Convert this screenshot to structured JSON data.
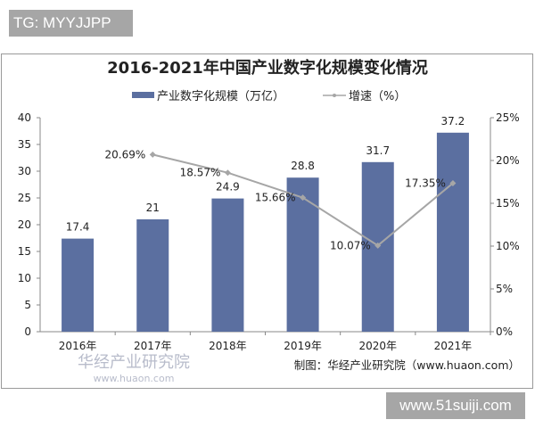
{
  "watermark_top": "TG: MYYJJPP",
  "watermark_bottom": "www.51suiji.com",
  "logo_watermark": "华经产业研究院",
  "logo_watermark_url": "www.huaon.com",
  "source": "制图：华经产业研究院（www.huaon.com）",
  "chart_data": {
    "type": "bar+line",
    "title": "2016-2021年中国产业数字化规模变化情况",
    "categories": [
      "2016年",
      "2017年",
      "2018年",
      "2019年",
      "2020年",
      "2021年"
    ],
    "series": [
      {
        "name": "产业数字化规模（万亿）",
        "type": "bar",
        "axis": "left",
        "color": "#5b6fa0",
        "values": [
          17.4,
          21,
          24.9,
          28.8,
          31.7,
          37.2
        ],
        "labels": [
          "17.4",
          "21",
          "24.9",
          "28.8",
          "31.7",
          "37.2"
        ]
      },
      {
        "name": "增速（%）",
        "type": "line",
        "axis": "right",
        "color": "#a6a6a6",
        "values": [
          null,
          20.69,
          18.57,
          15.66,
          10.07,
          17.35
        ],
        "labels": [
          "",
          "20.69%",
          "18.57%",
          "15.66%",
          "10.07%",
          "17.35%"
        ]
      }
    ],
    "y_left": {
      "range": [
        0,
        40
      ],
      "ticks": [
        "0",
        "5",
        "10",
        "15",
        "20",
        "25",
        "30",
        "35",
        "40"
      ]
    },
    "y_right": {
      "range": [
        0,
        25
      ],
      "ticks": [
        "0%",
        "5%",
        "10%",
        "15%",
        "20%",
        "25%"
      ]
    },
    "legend_position": "top",
    "grid": false
  }
}
